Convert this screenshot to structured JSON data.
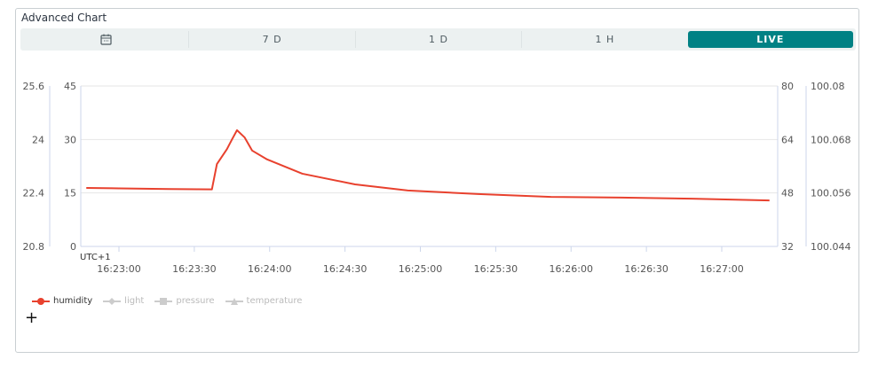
{
  "title": "Advanced Chart",
  "tabs": [
    {
      "icon": "calendar-icon",
      "label": ""
    },
    {
      "label": "7 D"
    },
    {
      "label": "1 D"
    },
    {
      "label": "1 H"
    },
    {
      "label": "LIVE",
      "active": true
    }
  ],
  "accent": "#008184",
  "timezone": "UTC+1",
  "add_icon": "plus-icon",
  "chart_data": {
    "type": "line",
    "title": "",
    "grid": true,
    "legend_placement": "bottom-left",
    "x_ticks": [
      "16:23:00",
      "16:23:30",
      "16:24:00",
      "16:24:30",
      "16:25:00",
      "16:25:30",
      "16:26:00",
      "16:26:30",
      "16:27:00"
    ],
    "y_axes": [
      {
        "series": "temperature",
        "ticks": [
          "25.6",
          "24",
          "22.4",
          "20.8"
        ],
        "range": [
          20.8,
          25.6
        ]
      },
      {
        "series": "humidity",
        "ticks": [
          "45",
          "30",
          "15",
          "0"
        ],
        "range": [
          0,
          45
        ]
      },
      {
        "series": "light",
        "ticks": [
          "80",
          "64",
          "48",
          "32"
        ],
        "range": [
          32,
          80
        ]
      },
      {
        "series": "pressure",
        "ticks": [
          "100.08",
          "100.068",
          "100.056",
          "100.044"
        ],
        "range": [
          100.044,
          100.08
        ]
      }
    ],
    "series": [
      {
        "name": "humidity",
        "color": "#e8412e",
        "visible": true,
        "marker": "circle",
        "x": [
          "16:22:47",
          "16:23:00",
          "16:23:20",
          "16:23:37",
          "16:23:39",
          "16:23:43",
          "16:23:45",
          "16:23:47",
          "16:23:50",
          "16:23:53",
          "16:23:59",
          "16:24:13",
          "16:24:34",
          "16:24:55",
          "16:25:23",
          "16:25:52",
          "16:26:20",
          "16:26:48",
          "16:27:19"
        ],
        "y": [
          16.4,
          16.3,
          16.1,
          16.0,
          23.1,
          27.3,
          30.0,
          32.6,
          30.6,
          26.9,
          24.4,
          20.4,
          17.4,
          15.7,
          14.7,
          13.9,
          13.7,
          13.4,
          12.9
        ]
      },
      {
        "name": "light",
        "color": "#c8c8c8",
        "visible": false,
        "marker": "diamond"
      },
      {
        "name": "pressure",
        "color": "#c8c8c8",
        "visible": false,
        "marker": "square"
      },
      {
        "name": "temperature",
        "color": "#c8c8c8",
        "visible": false,
        "marker": "triangle"
      }
    ]
  }
}
